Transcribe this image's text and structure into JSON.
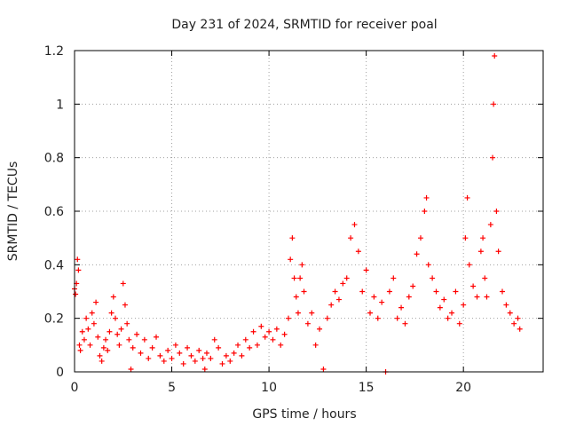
{
  "chart_data": {
    "type": "scatter",
    "title": "Day 231 of 2024, SRMTID for receiver poal",
    "xlabel": "GPS time / hours",
    "ylabel": "SRMTID / TECUs",
    "xlim": [
      0,
      24.1
    ],
    "ylim": [
      0,
      1.2
    ],
    "xticks": [
      0,
      5,
      10,
      15,
      20
    ],
    "yticks": [
      0,
      0.2,
      0.4,
      0.6,
      0.8,
      1,
      1.2
    ],
    "xtick_labels": [
      "0",
      "5",
      "10",
      "15",
      "20"
    ],
    "ytick_labels": [
      "0",
      "0.2",
      "0.4",
      "0.6",
      "0.8",
      "1",
      "1.2"
    ],
    "grid": true,
    "marker": "+",
    "colors": {
      "series": "#ff0000",
      "axes": "#000000",
      "grid": "#a0a0a0"
    },
    "series": [
      {
        "name": "SRMTID",
        "points": [
          [
            0.0,
            0.31
          ],
          [
            0.05,
            0.29
          ],
          [
            0.1,
            0.33
          ],
          [
            0.15,
            0.42
          ],
          [
            0.2,
            0.38
          ],
          [
            0.25,
            0.1
          ],
          [
            0.3,
            0.08
          ],
          [
            0.4,
            0.15
          ],
          [
            0.5,
            0.12
          ],
          [
            0.6,
            0.2
          ],
          [
            0.7,
            0.16
          ],
          [
            0.8,
            0.1
          ],
          [
            0.9,
            0.22
          ],
          [
            1.0,
            0.18
          ],
          [
            1.1,
            0.26
          ],
          [
            1.2,
            0.13
          ],
          [
            1.3,
            0.06
          ],
          [
            1.4,
            0.04
          ],
          [
            1.5,
            0.09
          ],
          [
            1.6,
            0.12
          ],
          [
            1.7,
            0.08
          ],
          [
            1.8,
            0.15
          ],
          [
            1.9,
            0.22
          ],
          [
            2.0,
            0.28
          ],
          [
            2.1,
            0.2
          ],
          [
            2.2,
            0.14
          ],
          [
            2.3,
            0.1
          ],
          [
            2.4,
            0.16
          ],
          [
            2.5,
            0.33
          ],
          [
            2.6,
            0.25
          ],
          [
            2.7,
            0.18
          ],
          [
            2.8,
            0.12
          ],
          [
            2.9,
            0.01
          ],
          [
            3.0,
            0.09
          ],
          [
            3.2,
            0.14
          ],
          [
            3.4,
            0.07
          ],
          [
            3.6,
            0.12
          ],
          [
            3.8,
            0.05
          ],
          [
            4.0,
            0.09
          ],
          [
            4.2,
            0.13
          ],
          [
            4.4,
            0.06
          ],
          [
            4.6,
            0.04
          ],
          [
            4.8,
            0.08
          ],
          [
            5.0,
            0.05
          ],
          [
            5.2,
            0.1
          ],
          [
            5.4,
            0.07
          ],
          [
            5.6,
            0.03
          ],
          [
            5.8,
            0.09
          ],
          [
            6.0,
            0.06
          ],
          [
            6.2,
            0.04
          ],
          [
            6.4,
            0.08
          ],
          [
            6.6,
            0.05
          ],
          [
            6.7,
            0.01
          ],
          [
            6.8,
            0.07
          ],
          [
            7.0,
            0.05
          ],
          [
            7.2,
            0.12
          ],
          [
            7.4,
            0.09
          ],
          [
            7.6,
            0.03
          ],
          [
            7.8,
            0.06
          ],
          [
            8.0,
            0.04
          ],
          [
            8.2,
            0.07
          ],
          [
            8.4,
            0.1
          ],
          [
            8.6,
            0.06
          ],
          [
            8.8,
            0.12
          ],
          [
            9.0,
            0.09
          ],
          [
            9.2,
            0.15
          ],
          [
            9.4,
            0.1
          ],
          [
            9.6,
            0.17
          ],
          [
            9.8,
            0.13
          ],
          [
            10.0,
            0.15
          ],
          [
            10.2,
            0.12
          ],
          [
            10.4,
            0.16
          ],
          [
            10.6,
            0.1
          ],
          [
            10.8,
            0.14
          ],
          [
            11.0,
            0.2
          ],
          [
            11.1,
            0.42
          ],
          [
            11.2,
            0.5
          ],
          [
            11.3,
            0.35
          ],
          [
            11.4,
            0.28
          ],
          [
            11.5,
            0.22
          ],
          [
            11.6,
            0.35
          ],
          [
            11.7,
            0.4
          ],
          [
            11.8,
            0.3
          ],
          [
            12.0,
            0.18
          ],
          [
            12.2,
            0.22
          ],
          [
            12.4,
            0.1
          ],
          [
            12.6,
            0.16
          ],
          [
            12.8,
            0.01
          ],
          [
            13.0,
            0.2
          ],
          [
            13.2,
            0.25
          ],
          [
            13.4,
            0.3
          ],
          [
            13.6,
            0.27
          ],
          [
            13.8,
            0.33
          ],
          [
            14.0,
            0.35
          ],
          [
            14.2,
            0.5
          ],
          [
            14.4,
            0.55
          ],
          [
            14.6,
            0.45
          ],
          [
            14.8,
            0.3
          ],
          [
            15.0,
            0.38
          ],
          [
            15.2,
            0.22
          ],
          [
            15.4,
            0.28
          ],
          [
            15.6,
            0.2
          ],
          [
            15.8,
            0.26
          ],
          [
            16.0,
            0.0
          ],
          [
            16.2,
            0.3
          ],
          [
            16.4,
            0.35
          ],
          [
            16.6,
            0.2
          ],
          [
            16.8,
            0.24
          ],
          [
            17.0,
            0.18
          ],
          [
            17.2,
            0.28
          ],
          [
            17.4,
            0.32
          ],
          [
            17.6,
            0.44
          ],
          [
            17.8,
            0.5
          ],
          [
            18.0,
            0.6
          ],
          [
            18.1,
            0.65
          ],
          [
            18.2,
            0.4
          ],
          [
            18.4,
            0.35
          ],
          [
            18.6,
            0.3
          ],
          [
            18.8,
            0.24
          ],
          [
            19.0,
            0.27
          ],
          [
            19.2,
            0.2
          ],
          [
            19.4,
            0.22
          ],
          [
            19.6,
            0.3
          ],
          [
            19.8,
            0.18
          ],
          [
            20.0,
            0.25
          ],
          [
            20.1,
            0.5
          ],
          [
            20.2,
            0.65
          ],
          [
            20.3,
            0.4
          ],
          [
            20.5,
            0.32
          ],
          [
            20.7,
            0.28
          ],
          [
            20.9,
            0.45
          ],
          [
            21.0,
            0.5
          ],
          [
            21.1,
            0.35
          ],
          [
            21.2,
            0.28
          ],
          [
            21.4,
            0.55
          ],
          [
            21.5,
            0.8
          ],
          [
            21.55,
            1.0
          ],
          [
            21.6,
            1.18
          ],
          [
            21.7,
            0.6
          ],
          [
            21.8,
            0.45
          ],
          [
            22.0,
            0.3
          ],
          [
            22.2,
            0.25
          ],
          [
            22.4,
            0.22
          ],
          [
            22.6,
            0.18
          ],
          [
            22.8,
            0.2
          ],
          [
            22.9,
            0.16
          ]
        ]
      }
    ]
  }
}
